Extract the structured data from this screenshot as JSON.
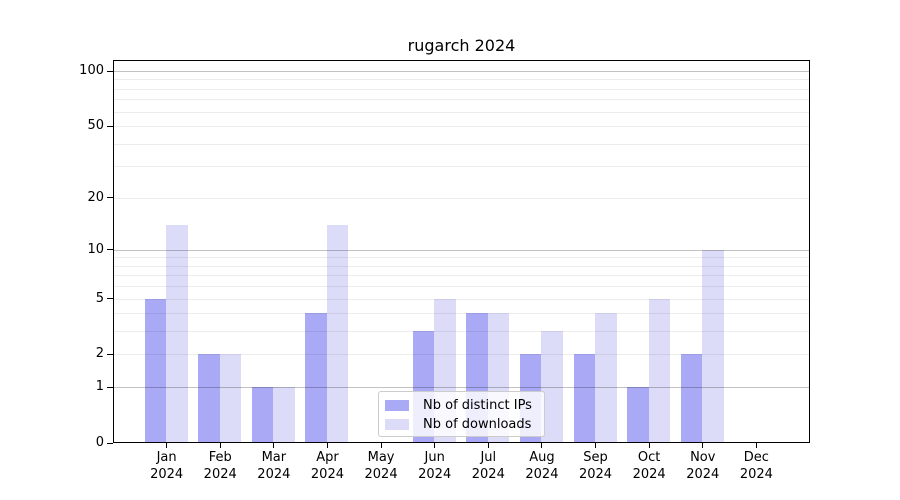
{
  "title": "rugarch 2024",
  "colors": {
    "distinct_ips_bar": "#a9a9f6",
    "downloads_bar": "#dcdcf8",
    "grid_minor": "rgba(0,0,0,0.07)",
    "grid_major": "rgba(0,0,0,0.24)",
    "spine": "#000000",
    "legend_border": "#cccccc",
    "legend_background": "rgba(255,255,255,0.8)"
  },
  "chart_data": {
    "type": "bar",
    "title": "rugarch 2024",
    "categories": [
      "Jan 2024",
      "Feb 2024",
      "Mar 2024",
      "Apr 2024",
      "May 2024",
      "Jun 2024",
      "Jul 2024",
      "Aug 2024",
      "Sep 2024",
      "Oct 2024",
      "Nov 2024",
      "Dec 2024"
    ],
    "series": [
      {
        "name": "Nb of distinct IPs",
        "color": "#a9a9f6",
        "values": [
          5,
          2,
          1,
          4,
          0,
          3,
          4,
          2,
          2,
          1,
          2,
          0
        ]
      },
      {
        "name": "Nb of downloads",
        "color": "#dcdcf8",
        "values": [
          14,
          2,
          1,
          14,
          0,
          5,
          4,
          3,
          4,
          5,
          10,
          0
        ]
      }
    ],
    "xlabel": "",
    "ylabel": "",
    "yscale": "log1p",
    "ylim": [
      0,
      115
    ],
    "yticks": [
      0,
      1,
      2,
      5,
      10,
      20,
      50,
      100
    ],
    "major_gridlines": [
      1,
      10,
      100
    ],
    "minor_gridlines": [
      2,
      3,
      4,
      5,
      6,
      7,
      8,
      9,
      20,
      30,
      40,
      50,
      60,
      70,
      80,
      90
    ],
    "grid": true,
    "legend_position": "lower center"
  }
}
